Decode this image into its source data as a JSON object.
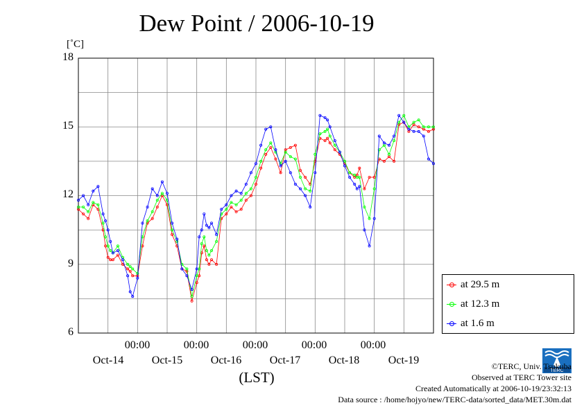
{
  "chart_data": {
    "type": "line",
    "title": "Dew Point / 2006-10-19",
    "unit_label": "[˚C]",
    "xlabel": "(LST)",
    "ylim": [
      6,
      18
    ],
    "y_ticks": [
      "6",
      "9",
      "12",
      "15",
      "18"
    ],
    "x_range_hours": [
      0,
      144
    ],
    "x_time_labels": [
      "00:00",
      "00:00",
      "00:00",
      "00:00",
      "00:00"
    ],
    "x_date_labels": [
      "Oct-14",
      "Oct-15",
      "Oct-16",
      "Oct-17",
      "Oct-18",
      "Oct-19"
    ],
    "grid": true,
    "legend_position": "bottom-right, outside plot",
    "x_unit": "hours since start of Oct-13 LST",
    "series": [
      {
        "name": "at 29.5 m",
        "color": "#ff0000",
        "x": [
          0,
          2,
          4,
          6,
          8,
          10,
          11,
          12,
          13,
          14,
          16,
          18,
          20,
          21,
          22,
          24,
          26,
          28,
          30,
          32,
          34,
          36,
          38,
          40,
          42,
          44,
          46,
          48,
          49,
          50,
          51,
          52,
          53,
          54,
          56,
          58,
          60,
          62,
          64,
          66,
          68,
          70,
          72,
          74,
          76,
          78,
          80,
          82,
          84,
          86,
          88,
          90,
          92,
          94,
          96,
          98,
          100,
          101,
          102,
          104,
          106,
          108,
          110,
          112,
          113,
          114,
          116,
          118,
          120,
          122,
          124,
          126,
          128,
          130,
          132,
          134,
          136,
          138,
          140,
          142,
          144
        ],
        "y": [
          11.4,
          11.2,
          11.0,
          11.6,
          11.4,
          10.5,
          9.8,
          9.3,
          9.2,
          9.2,
          9.4,
          9.0,
          8.8,
          8.7,
          8.5,
          8.5,
          9.8,
          10.8,
          11.0,
          11.5,
          12.0,
          11.6,
          10.3,
          9.8,
          8.8,
          8.7,
          7.4,
          8.2,
          8.5,
          9.5,
          9.8,
          9.2,
          9.0,
          9.2,
          9.0,
          11.0,
          11.2,
          11.5,
          11.3,
          11.4,
          11.8,
          12.0,
          12.5,
          13.2,
          13.8,
          14.1,
          13.6,
          13.0,
          14.0,
          14.1,
          14.2,
          13.1,
          12.8,
          12.5,
          13.5,
          14.5,
          14.4,
          14.5,
          14.3,
          14.0,
          13.8,
          13.4,
          13.0,
          12.8,
          12.9,
          13.2,
          12.3,
          12.8,
          12.8,
          13.6,
          13.5,
          13.7,
          13.5,
          15.1,
          15.2,
          14.8,
          15.1,
          15.0,
          14.9,
          14.8,
          14.9
        ]
      },
      {
        "name": "at 12.3 m",
        "color": "#00ff00",
        "x": [
          0,
          2,
          4,
          6,
          8,
          10,
          11,
          12,
          13,
          14,
          16,
          18,
          20,
          21,
          22,
          24,
          26,
          28,
          30,
          32,
          34,
          36,
          38,
          40,
          42,
          44,
          46,
          48,
          49,
          50,
          51,
          52,
          53,
          54,
          56,
          58,
          60,
          62,
          64,
          66,
          68,
          70,
          72,
          74,
          76,
          78,
          80,
          82,
          84,
          86,
          88,
          90,
          92,
          94,
          96,
          98,
          100,
          101,
          102,
          104,
          106,
          108,
          110,
          112,
          113,
          114,
          116,
          118,
          120,
          122,
          124,
          126,
          128,
          130,
          132,
          134,
          136,
          138,
          140,
          142,
          144
        ],
        "y": [
          11.5,
          11.5,
          11.3,
          11.7,
          11.6,
          10.8,
          10.2,
          9.8,
          9.6,
          9.5,
          9.8,
          9.3,
          9.0,
          8.9,
          8.8,
          8.6,
          10.2,
          10.9,
          11.3,
          11.8,
          12.1,
          11.8,
          10.5,
          10.0,
          9.0,
          8.8,
          7.6,
          8.5,
          8.8,
          9.9,
          10.2,
          9.6,
          9.4,
          9.6,
          10.0,
          11.2,
          11.4,
          11.7,
          11.6,
          11.8,
          12.1,
          12.3,
          12.8,
          13.5,
          14.0,
          14.3,
          13.9,
          13.4,
          13.9,
          13.7,
          13.6,
          12.8,
          12.3,
          12.2,
          13.8,
          14.7,
          14.8,
          14.9,
          14.6,
          14.2,
          13.9,
          13.5,
          13.0,
          12.9,
          12.8,
          12.8,
          11.5,
          11.0,
          12.3,
          14.0,
          14.2,
          13.8,
          14.4,
          15.2,
          15.5,
          15.0,
          15.2,
          15.3,
          15.0,
          15.0,
          15.0
        ]
      },
      {
        "name": "at 1.6 m",
        "color": "#0000ff",
        "x": [
          0,
          2,
          4,
          6,
          8,
          10,
          11,
          12,
          13,
          14,
          16,
          18,
          20,
          21,
          22,
          24,
          26,
          28,
          30,
          32,
          34,
          36,
          38,
          40,
          42,
          44,
          46,
          48,
          49,
          50,
          51,
          52,
          53,
          54,
          56,
          58,
          60,
          62,
          64,
          66,
          68,
          70,
          72,
          74,
          76,
          78,
          80,
          82,
          84,
          86,
          88,
          90,
          92,
          94,
          96,
          98,
          100,
          101,
          102,
          104,
          106,
          108,
          110,
          112,
          113,
          114,
          116,
          118,
          120,
          122,
          124,
          126,
          128,
          130,
          132,
          134,
          136,
          138,
          140,
          142,
          144
        ],
        "y": [
          11.8,
          12.0,
          11.6,
          12.2,
          12.4,
          11.2,
          10.9,
          10.5,
          10.0,
          9.5,
          9.6,
          9.2,
          8.5,
          7.8,
          7.6,
          8.4,
          10.8,
          11.5,
          12.3,
          12.0,
          12.6,
          12.1,
          10.8,
          10.1,
          8.8,
          8.5,
          7.9,
          8.8,
          10.2,
          10.5,
          11.2,
          10.7,
          10.6,
          10.8,
          10.3,
          11.4,
          11.6,
          12.0,
          12.2,
          12.1,
          12.5,
          13.0,
          13.4,
          14.2,
          14.9,
          15.0,
          14.0,
          13.3,
          13.5,
          13.0,
          12.5,
          12.3,
          12.0,
          11.5,
          13.0,
          15.5,
          15.4,
          15.3,
          15.0,
          14.4,
          13.9,
          13.3,
          12.8,
          12.5,
          12.3,
          12.4,
          10.5,
          9.8,
          11.0,
          14.6,
          14.3,
          14.2,
          14.6,
          15.5,
          15.2,
          14.9,
          14.8,
          14.8,
          14.6,
          13.6,
          13.4
        ]
      }
    ]
  },
  "credits": {
    "copyright": "©TERC, Univ. Tsukuba",
    "observed": "Observed at TERC Tower site",
    "created": "Created Automatically at 2006-10-19/23:32:13",
    "source": "Data source : /home/hojyo/new/TERC-data/sorted_data/MET.30m.dat"
  },
  "logo_text": "TERC"
}
